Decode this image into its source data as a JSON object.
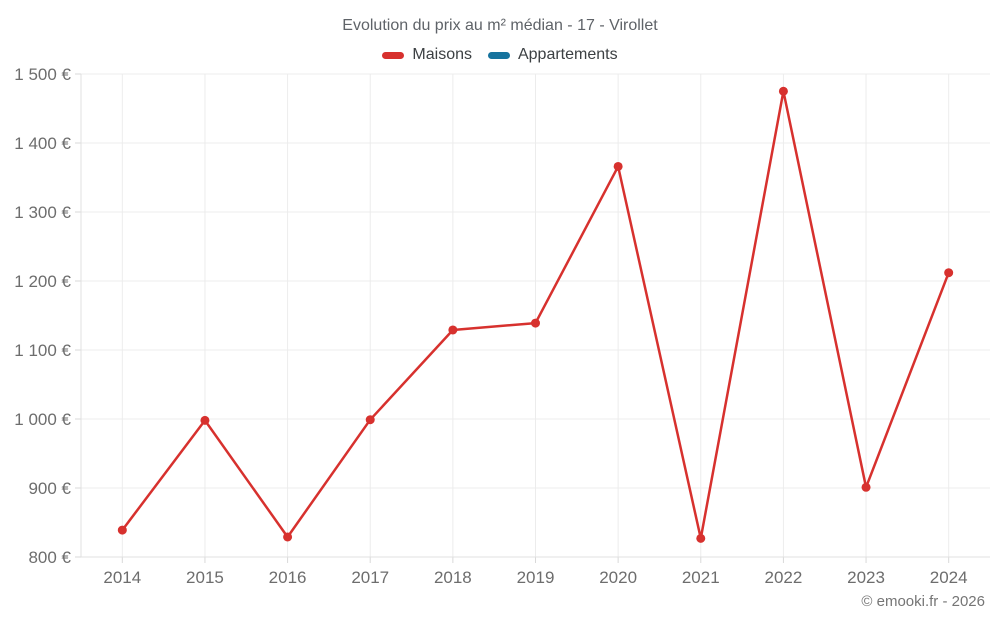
{
  "chart": {
    "footer": "© emooki.fr - 2026"
  },
  "chart_data": {
    "type": "line",
    "title": "Evolution du prix au m² médian - 17 - Virollet",
    "categories": [
      "2014",
      "2015",
      "2016",
      "2017",
      "2018",
      "2019",
      "2020",
      "2021",
      "2022",
      "2023",
      "2024"
    ],
    "series": [
      {
        "name": "Maisons",
        "color": "#d7312e",
        "values": [
          839,
          998,
          829,
          999,
          1129,
          1139,
          1366,
          827,
          1475,
          901,
          1212
        ]
      },
      {
        "name": "Appartements",
        "color": "#16739e",
        "values": []
      }
    ],
    "xlabel": "",
    "ylabel": "",
    "ylim": [
      800,
      1500
    ],
    "ytick_step": 100,
    "ytick_labels": [
      "800 €",
      "900 €",
      "1 000 €",
      "1 100 €",
      "1 200 €",
      "1 300 €",
      "1 400 €",
      "1 500 €"
    ],
    "grid": true,
    "legend_position": "top",
    "currency": "€"
  }
}
